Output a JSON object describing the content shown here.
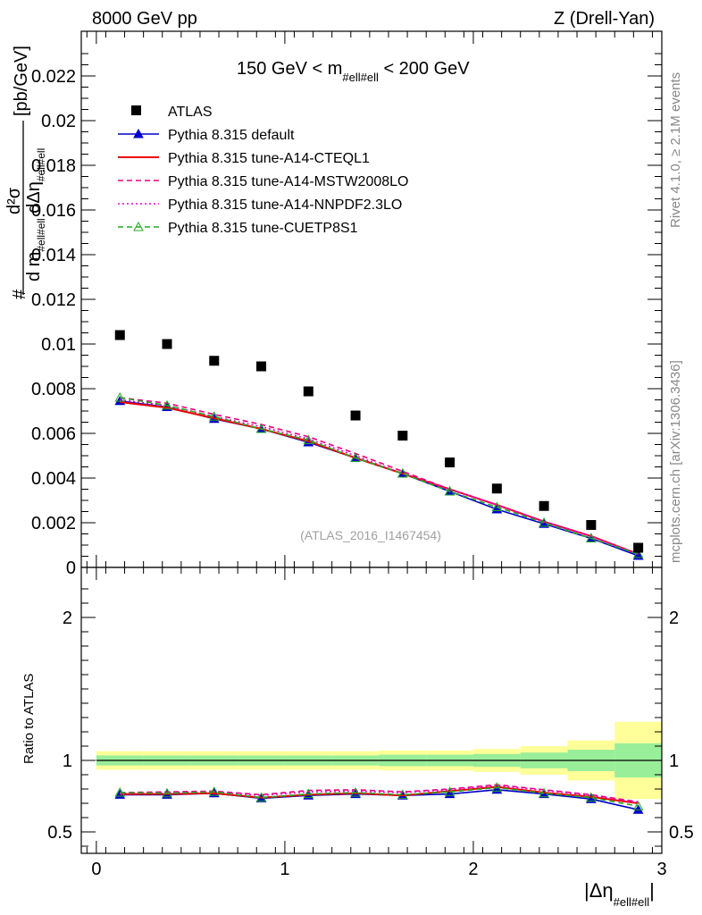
{
  "header": {
    "left": "8000 GeV pp",
    "right": "Z (Drell-Yan)"
  },
  "side_labels": {
    "rivet": "Rivet 4.1.0, ≥ 2.1M events",
    "mcplots": "mcplots.cern.ch [arXiv:1306.3436]"
  },
  "chart_data": {
    "type": "line",
    "title": "150 GeV < m_{#ell#ell} < 200 GeV",
    "title_parts": {
      "pre": "150 GeV < m",
      "sub": "#ell#ell",
      "post": " < 200 GeV"
    },
    "analysis_label": "(ATLAS_2016_I1467454)",
    "xlabel": {
      "main": "|Δη",
      "sub": "#ell#ell",
      "post": "|"
    },
    "ylabel_main": {
      "frac_num": "d²σ",
      "frac_den": "d m",
      "den_sub": "#ell#ell",
      "den_post": " dΔη",
      "den_sub2": "#ell#ell",
      "unit": "[pb/GeV]",
      "hash": "#"
    },
    "ylabel_ratio": "Ratio to ATLAS",
    "xlim": [
      -0.08,
      3.0
    ],
    "ylim": [
      0,
      0.024
    ],
    "ratio_ylim": [
      0.35,
      2.35
    ],
    "x_ticks": [
      {
        "v": 0,
        "label": "0"
      },
      {
        "v": 1,
        "label": "1"
      },
      {
        "v": 2,
        "label": "2"
      },
      {
        "v": 3,
        "label": "3"
      }
    ],
    "y_ticks": [
      {
        "v": 0,
        "label": "0"
      },
      {
        "v": 0.002,
        "label": "0.002"
      },
      {
        "v": 0.004,
        "label": "0.004"
      },
      {
        "v": 0.006,
        "label": "0.006"
      },
      {
        "v": 0.008,
        "label": "0.008"
      },
      {
        "v": 0.01,
        "label": "0.01"
      },
      {
        "v": 0.012,
        "label": "0.012"
      },
      {
        "v": 0.014,
        "label": "0.014"
      },
      {
        "v": 0.016,
        "label": "0.016"
      },
      {
        "v": 0.018,
        "label": "0.018"
      },
      {
        "v": 0.02,
        "label": "0.02"
      },
      {
        "v": 0.022,
        "label": "0.022"
      }
    ],
    "ratio_y_ticks": [
      {
        "v": 0.5,
        "label": "0.5"
      },
      {
        "v": 1,
        "label": "1"
      },
      {
        "v": 2,
        "label": "2"
      }
    ],
    "bin_edges": [
      0,
      0.25,
      0.5,
      0.75,
      1.0,
      1.25,
      1.5,
      1.75,
      2.0,
      2.25,
      2.5,
      2.75,
      3.0
    ],
    "x": [
      0.125,
      0.375,
      0.625,
      0.875,
      1.125,
      1.375,
      1.625,
      1.875,
      2.125,
      2.375,
      2.625,
      2.875
    ],
    "data": {
      "name": "ATLAS",
      "values": [
        0.0104,
        0.01,
        0.00925,
        0.009,
        0.00788,
        0.0068,
        0.0059,
        0.0047,
        0.00353,
        0.00275,
        0.0019,
        0.00088
      ],
      "band_inner": [
        0.035,
        0.035,
        0.035,
        0.035,
        0.035,
        0.035,
        0.04,
        0.04,
        0.045,
        0.055,
        0.075,
        0.12
      ],
      "band_outer": [
        0.065,
        0.065,
        0.065,
        0.065,
        0.065,
        0.065,
        0.07,
        0.07,
        0.08,
        0.1,
        0.14,
        0.27
      ]
    },
    "series": [
      {
        "name": "Pythia 8.315 default",
        "color": "#0000cc",
        "style": "solid",
        "marker": "triangle-filled",
        "values": [
          0.00745,
          0.00718,
          0.00665,
          0.0062,
          0.0056,
          0.0049,
          0.0042,
          0.0034,
          0.0026,
          0.00195,
          0.0013,
          0.00052
        ]
      },
      {
        "name": "Pythia 8.315 tune-A14-CTEQL1",
        "color": "#ee0000",
        "style": "solid",
        "marker": "none",
        "values": [
          0.0074,
          0.00715,
          0.00668,
          0.0062,
          0.00565,
          0.0049,
          0.0042,
          0.0035,
          0.0028,
          0.00205,
          0.0014,
          0.0006
        ]
      },
      {
        "name": "Pythia 8.315 tune-A14-MSTW2008LO",
        "color": "#e8007a",
        "style": "dashed",
        "marker": "none",
        "values": [
          0.0076,
          0.00735,
          0.00685,
          0.0064,
          0.00585,
          0.0051,
          0.0043,
          0.0035,
          0.0028,
          0.00205,
          0.0014,
          0.0006
        ]
      },
      {
        "name": "Pythia 8.315 tune-A14-NNPDF2.3LO",
        "color": "#ee00cc",
        "style": "dotted",
        "marker": "none",
        "values": [
          0.0075,
          0.00725,
          0.00675,
          0.0063,
          0.00575,
          0.005,
          0.0042,
          0.0035,
          0.0028,
          0.00205,
          0.0014,
          0.0006
        ]
      },
      {
        "name": "Pythia 8.315 tune-CUETP8S1",
        "color": "#22aa22",
        "style": "dashed",
        "marker": "triangle-open",
        "values": [
          0.0076,
          0.00725,
          0.00675,
          0.0062,
          0.0057,
          0.0049,
          0.0042,
          0.0034,
          0.0027,
          0.002,
          0.0013,
          0.0006
        ]
      }
    ],
    "ratios": [
      [
        0.76,
        0.76,
        0.77,
        0.735,
        0.755,
        0.765,
        0.755,
        0.765,
        0.795,
        0.765,
        0.73,
        0.655
      ],
      [
        0.765,
        0.765,
        0.77,
        0.74,
        0.76,
        0.77,
        0.755,
        0.785,
        0.815,
        0.775,
        0.745,
        0.7
      ],
      [
        0.775,
        0.78,
        0.785,
        0.76,
        0.79,
        0.795,
        0.78,
        0.8,
        0.83,
        0.795,
        0.76,
        0.71
      ],
      [
        0.77,
        0.775,
        0.78,
        0.755,
        0.78,
        0.785,
        0.775,
        0.795,
        0.825,
        0.79,
        0.755,
        0.705
      ],
      [
        0.775,
        0.77,
        0.78,
        0.74,
        0.765,
        0.775,
        0.76,
        0.78,
        0.81,
        0.77,
        0.74,
        0.68
      ]
    ]
  }
}
